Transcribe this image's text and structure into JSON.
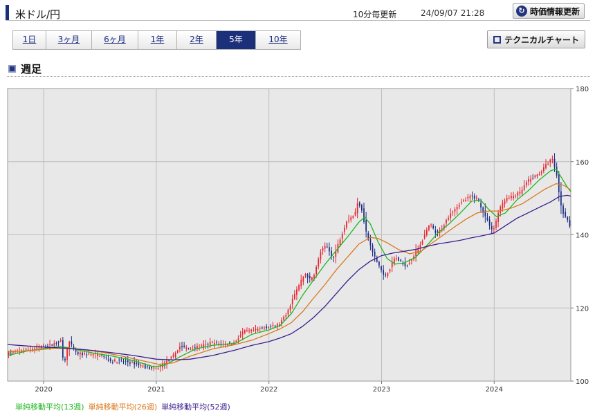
{
  "header": {
    "title": "米ドル/円",
    "interval": "10分毎更新",
    "timestamp": "24/09/07 21:28",
    "refresh_label": "時価情報更新"
  },
  "tabs": [
    {
      "label": "1日",
      "active": false
    },
    {
      "label": "3ヶ月",
      "active": false
    },
    {
      "label": "6ヶ月",
      "active": false
    },
    {
      "label": "1年",
      "active": false
    },
    {
      "label": "2年",
      "active": false
    },
    {
      "label": "5年",
      "active": true
    },
    {
      "label": "10年",
      "active": false
    }
  ],
  "technical_chart_label": "テクニカルチャート",
  "section_title": "週足",
  "legend": [
    {
      "label": "単純移動平均(13週)",
      "color": "#1fb51f"
    },
    {
      "label": "単純移動平均(26週)",
      "color": "#d9781c"
    },
    {
      "label": "単純移動平均(52週)",
      "color": "#3a1c8c"
    }
  ],
  "chart_data": {
    "type": "line",
    "title": "",
    "xlabel": "",
    "ylabel": "",
    "x_start": 2019.68,
    "x_end": 2024.68,
    "ylim": [
      100,
      180
    ],
    "y_ticks": [
      "100",
      "120",
      "140",
      "160",
      "180"
    ],
    "x_ticks": [
      {
        "label": "2020",
        "x": 2020.0
      },
      {
        "label": "2021",
        "x": 2021.0
      },
      {
        "label": "2022",
        "x": 2022.0
      },
      {
        "label": "2023",
        "x": 2023.0
      },
      {
        "label": "2024",
        "x": 2024.0
      }
    ],
    "grid": true,
    "up_color": "#e8202a",
    "down_color": "#1a2a80",
    "price_path": [
      [
        2019.68,
        107.5
      ],
      [
        2019.85,
        108.5
      ],
      [
        2019.98,
        109.3
      ],
      [
        2020.05,
        109.5
      ],
      [
        2020.12,
        110.5
      ],
      [
        2020.16,
        111.0
      ],
      [
        2020.19,
        104.0
      ],
      [
        2020.23,
        111.0
      ],
      [
        2020.3,
        107.5
      ],
      [
        2020.4,
        107.3
      ],
      [
        2020.52,
        107.2
      ],
      [
        2020.6,
        105.5
      ],
      [
        2020.7,
        105.5
      ],
      [
        2020.8,
        105.0
      ],
      [
        2020.92,
        103.8
      ],
      [
        2021.0,
        103.2
      ],
      [
        2021.08,
        104.8
      ],
      [
        2021.15,
        106.5
      ],
      [
        2021.22,
        109.5
      ],
      [
        2021.3,
        108.8
      ],
      [
        2021.4,
        109.4
      ],
      [
        2021.5,
        110.5
      ],
      [
        2021.6,
        110.0
      ],
      [
        2021.7,
        110.5
      ],
      [
        2021.78,
        113.5
      ],
      [
        2021.88,
        113.8
      ],
      [
        2021.98,
        114.8
      ],
      [
        2022.05,
        115.0
      ],
      [
        2022.1,
        115.5
      ],
      [
        2022.17,
        118.5
      ],
      [
        2022.22,
        122.5
      ],
      [
        2022.28,
        126.5
      ],
      [
        2022.33,
        129.5
      ],
      [
        2022.38,
        127.5
      ],
      [
        2022.42,
        130.0
      ],
      [
        2022.47,
        135.5
      ],
      [
        2022.52,
        137.0
      ],
      [
        2022.58,
        133.5
      ],
      [
        2022.63,
        138.0
      ],
      [
        2022.7,
        144.0
      ],
      [
        2022.77,
        145.5
      ],
      [
        2022.8,
        149.0
      ],
      [
        2022.83,
        147.5
      ],
      [
        2022.87,
        141.0
      ],
      [
        2022.92,
        136.0
      ],
      [
        2022.96,
        133.0
      ],
      [
        2023.0,
        131.0
      ],
      [
        2023.03,
        128.5
      ],
      [
        2023.08,
        130.5
      ],
      [
        2023.13,
        134.0
      ],
      [
        2023.18,
        132.5
      ],
      [
        2023.23,
        131.5
      ],
      [
        2023.3,
        134.5
      ],
      [
        2023.37,
        138.5
      ],
      [
        2023.44,
        143.0
      ],
      [
        2023.5,
        140.0
      ],
      [
        2023.55,
        142.0
      ],
      [
        2023.62,
        146.0
      ],
      [
        2023.7,
        148.5
      ],
      [
        2023.8,
        150.5
      ],
      [
        2023.86,
        150.0
      ],
      [
        2023.93,
        145.0
      ],
      [
        2024.0,
        141.0
      ],
      [
        2024.05,
        146.5
      ],
      [
        2024.1,
        149.5
      ],
      [
        2024.17,
        150.5
      ],
      [
        2024.24,
        151.5
      ],
      [
        2024.3,
        154.5
      ],
      [
        2024.35,
        155.5
      ],
      [
        2024.42,
        157.0
      ],
      [
        2024.48,
        159.5
      ],
      [
        2024.52,
        161.0
      ],
      [
        2024.56,
        157.5
      ],
      [
        2024.59,
        150.0
      ],
      [
        2024.62,
        146.0
      ],
      [
        2024.65,
        145.0
      ],
      [
        2024.68,
        142.5
      ]
    ],
    "series": [
      {
        "key": "ma13",
        "color": "#1fb51f",
        "points": [
          [
            2019.68,
            107.0
          ],
          [
            2019.85,
            108.2
          ],
          [
            2020.0,
            108.9
          ],
          [
            2020.15,
            109.5
          ],
          [
            2020.3,
            108.6
          ],
          [
            2020.45,
            107.6
          ],
          [
            2020.6,
            106.9
          ],
          [
            2020.8,
            105.6
          ],
          [
            2020.98,
            103.9
          ],
          [
            2021.08,
            104.4
          ],
          [
            2021.2,
            106.5
          ],
          [
            2021.35,
            108.8
          ],
          [
            2021.5,
            109.8
          ],
          [
            2021.7,
            110.3
          ],
          [
            2021.85,
            112.8
          ],
          [
            2022.0,
            114.0
          ],
          [
            2022.1,
            115.2
          ],
          [
            2022.2,
            118.5
          ],
          [
            2022.3,
            123.5
          ],
          [
            2022.4,
            127.8
          ],
          [
            2022.5,
            132.0
          ],
          [
            2022.6,
            135.8
          ],
          [
            2022.7,
            139.5
          ],
          [
            2022.8,
            143.5
          ],
          [
            2022.85,
            144.8
          ],
          [
            2022.9,
            143.0
          ],
          [
            2022.97,
            138.0
          ],
          [
            2023.05,
            133.5
          ],
          [
            2023.12,
            132.0
          ],
          [
            2023.2,
            132.3
          ],
          [
            2023.3,
            133.8
          ],
          [
            2023.4,
            137.0
          ],
          [
            2023.5,
            140.5
          ],
          [
            2023.6,
            143.0
          ],
          [
            2023.7,
            146.0
          ],
          [
            2023.8,
            149.2
          ],
          [
            2023.88,
            149.5
          ],
          [
            2023.95,
            147.0
          ],
          [
            2024.02,
            145.0
          ],
          [
            2024.1,
            146.0
          ],
          [
            2024.2,
            149.5
          ],
          [
            2024.3,
            152.0
          ],
          [
            2024.4,
            155.0
          ],
          [
            2024.5,
            157.5
          ],
          [
            2024.55,
            158.0
          ],
          [
            2024.6,
            155.5
          ],
          [
            2024.65,
            153.0
          ],
          [
            2024.68,
            151.8
          ]
        ]
      },
      {
        "key": "ma26",
        "color": "#d9781c",
        "points": [
          [
            2019.68,
            108.0
          ],
          [
            2019.9,
            108.4
          ],
          [
            2020.1,
            109.0
          ],
          [
            2020.3,
            108.8
          ],
          [
            2020.5,
            108.0
          ],
          [
            2020.7,
            106.8
          ],
          [
            2020.9,
            105.4
          ],
          [
            2021.02,
            104.6
          ],
          [
            2021.15,
            105.0
          ],
          [
            2021.3,
            106.8
          ],
          [
            2021.5,
            108.8
          ],
          [
            2021.7,
            110.0
          ],
          [
            2021.85,
            111.2
          ],
          [
            2022.0,
            113.0
          ],
          [
            2022.1,
            114.3
          ],
          [
            2022.2,
            116.0
          ],
          [
            2022.3,
            119.0
          ],
          [
            2022.4,
            122.8
          ],
          [
            2022.5,
            126.5
          ],
          [
            2022.6,
            130.5
          ],
          [
            2022.7,
            134.0
          ],
          [
            2022.8,
            137.5
          ],
          [
            2022.9,
            139.3
          ],
          [
            2022.97,
            139.0
          ],
          [
            2023.05,
            137.8
          ],
          [
            2023.15,
            136.0
          ],
          [
            2023.25,
            134.8
          ],
          [
            2023.35,
            135.5
          ],
          [
            2023.45,
            137.8
          ],
          [
            2023.55,
            140.0
          ],
          [
            2023.65,
            142.2
          ],
          [
            2023.75,
            144.3
          ],
          [
            2023.85,
            146.0
          ],
          [
            2023.95,
            146.5
          ],
          [
            2024.05,
            146.5
          ],
          [
            2024.15,
            147.3
          ],
          [
            2024.25,
            148.5
          ],
          [
            2024.35,
            150.5
          ],
          [
            2024.45,
            152.5
          ],
          [
            2024.55,
            154.0
          ],
          [
            2024.62,
            153.5
          ],
          [
            2024.68,
            152.3
          ]
        ]
      },
      {
        "key": "ma52",
        "color": "#3a1c8c",
        "points": [
          [
            2019.68,
            110.0
          ],
          [
            2019.85,
            109.6
          ],
          [
            2020.0,
            109.3
          ],
          [
            2020.2,
            109.0
          ],
          [
            2020.4,
            108.5
          ],
          [
            2020.6,
            107.8
          ],
          [
            2020.8,
            107.0
          ],
          [
            2021.0,
            106.0
          ],
          [
            2021.15,
            105.8
          ],
          [
            2021.3,
            106.0
          ],
          [
            2021.5,
            107.0
          ],
          [
            2021.7,
            108.5
          ],
          [
            2021.85,
            109.8
          ],
          [
            2022.0,
            110.8
          ],
          [
            2022.1,
            111.8
          ],
          [
            2022.2,
            113.0
          ],
          [
            2022.3,
            115.0
          ],
          [
            2022.4,
            117.5
          ],
          [
            2022.5,
            120.5
          ],
          [
            2022.6,
            124.0
          ],
          [
            2022.7,
            127.5
          ],
          [
            2022.8,
            130.5
          ],
          [
            2022.9,
            132.8
          ],
          [
            2023.0,
            134.3
          ],
          [
            2023.1,
            135.0
          ],
          [
            2023.2,
            135.5
          ],
          [
            2023.3,
            136.0
          ],
          [
            2023.4,
            136.8
          ],
          [
            2023.5,
            137.5
          ],
          [
            2023.6,
            138.0
          ],
          [
            2023.7,
            138.5
          ],
          [
            2023.8,
            139.2
          ],
          [
            2023.9,
            139.8
          ],
          [
            2024.0,
            140.5
          ],
          [
            2024.1,
            142.5
          ],
          [
            2024.2,
            144.5
          ],
          [
            2024.3,
            146.0
          ],
          [
            2024.4,
            147.5
          ],
          [
            2024.5,
            149.0
          ],
          [
            2024.58,
            150.5
          ],
          [
            2024.65,
            150.8
          ],
          [
            2024.68,
            150.6
          ]
        ]
      }
    ]
  }
}
